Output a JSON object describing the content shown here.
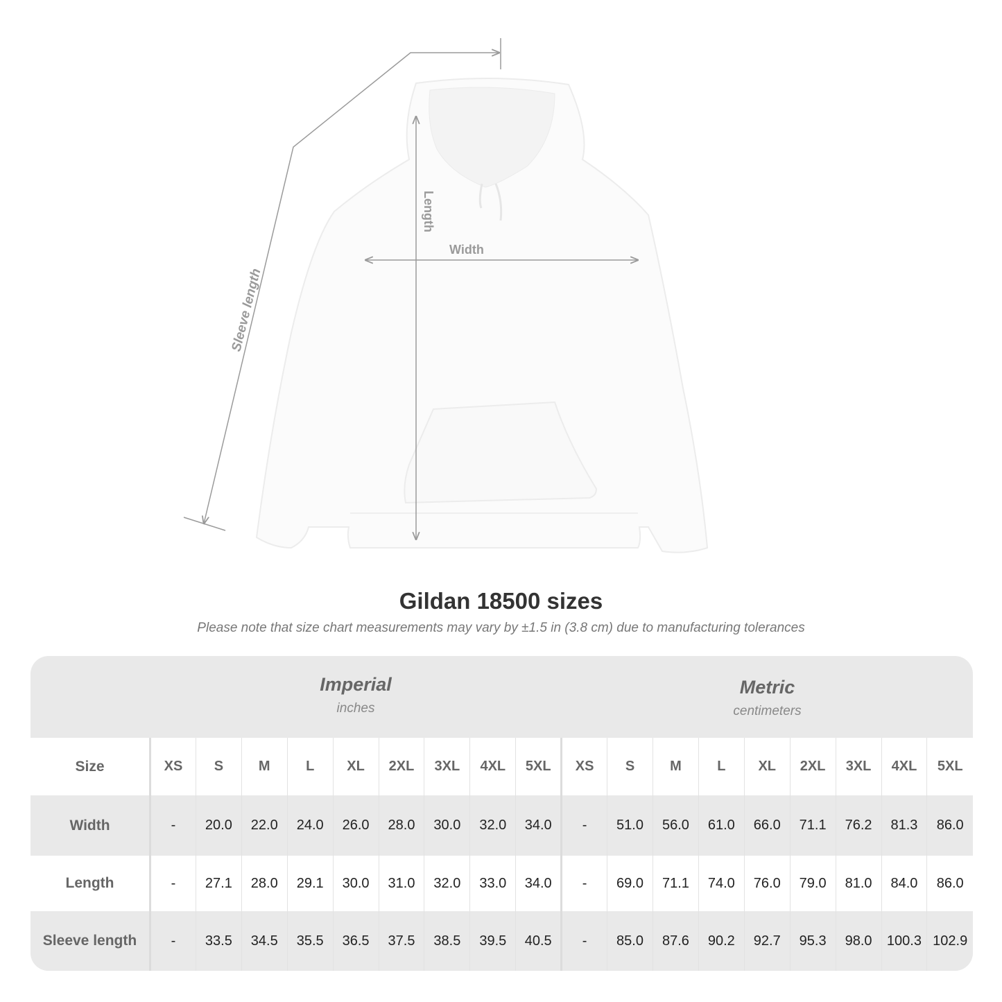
{
  "illustration": {
    "labels": {
      "length": "Length",
      "width": "Width",
      "sleeve": "Sleeve length"
    },
    "colors": {
      "garment": "#ffffff",
      "measure_line": "#9a9a9a"
    }
  },
  "title": "Gildan 18500 sizes",
  "subtitle": "Please note that size chart measurements may vary by ±1.5 in (3.8 cm) due to manufacturing tolerances",
  "table": {
    "imperial": {
      "name": "Imperial",
      "unit": "inches"
    },
    "metric": {
      "name": "Metric",
      "unit": "centimeters"
    },
    "size_label": "Size",
    "sizes": [
      "XS",
      "S",
      "M",
      "L",
      "XL",
      "2XL",
      "3XL",
      "4XL",
      "5XL"
    ],
    "rows": [
      {
        "label": "Width",
        "imperial": [
          "-",
          "20.0",
          "22.0",
          "24.0",
          "26.0",
          "28.0",
          "30.0",
          "32.0",
          "34.0"
        ],
        "metric": [
          "-",
          "51.0",
          "56.0",
          "61.0",
          "66.0",
          "71.1",
          "76.2",
          "81.3",
          "86.0"
        ]
      },
      {
        "label": "Length",
        "imperial": [
          "-",
          "27.1",
          "28.0",
          "29.1",
          "30.0",
          "31.0",
          "32.0",
          "33.0",
          "34.0"
        ],
        "metric": [
          "-",
          "69.0",
          "71.1",
          "74.0",
          "76.0",
          "79.0",
          "81.0",
          "84.0",
          "86.0"
        ]
      },
      {
        "label": "Sleeve length",
        "imperial": [
          "-",
          "33.5",
          "34.5",
          "35.5",
          "36.5",
          "37.5",
          "38.5",
          "39.5",
          "40.5"
        ],
        "metric": [
          "-",
          "85.0",
          "87.6",
          "90.2",
          "92.7",
          "95.3",
          "98.0",
          "100.3",
          "102.9"
        ]
      }
    ]
  }
}
